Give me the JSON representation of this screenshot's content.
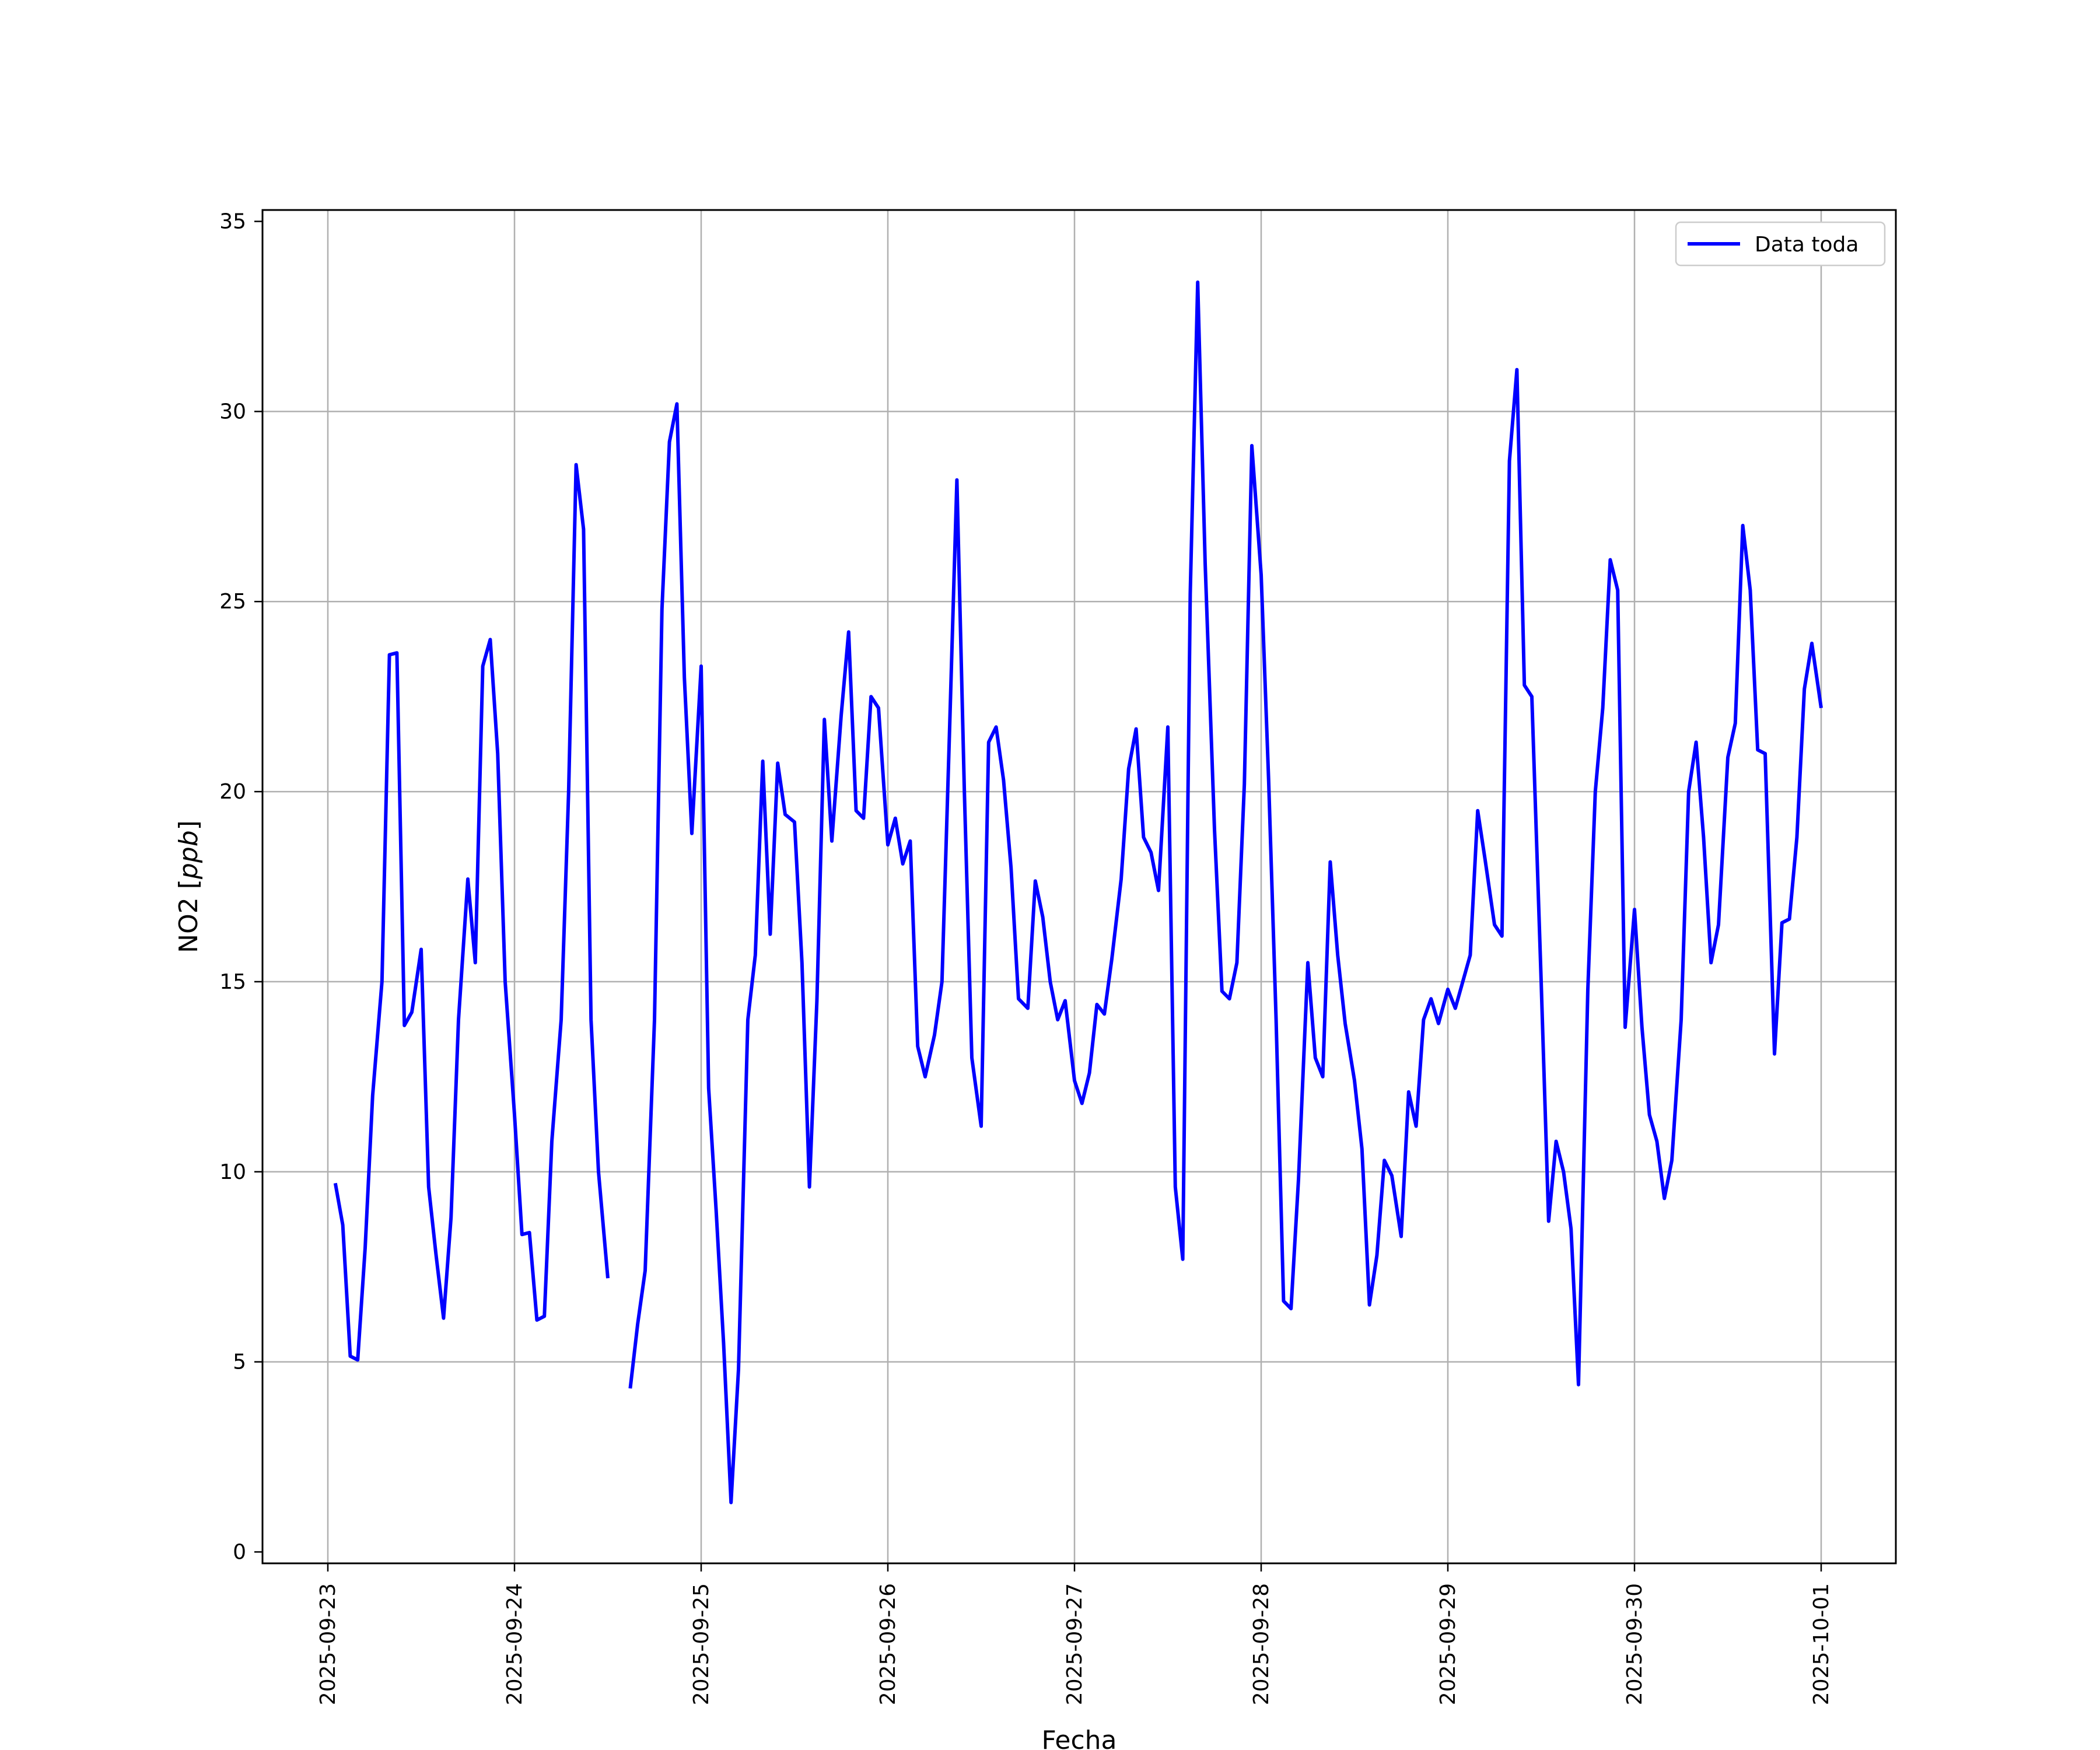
{
  "chart_data": {
    "type": "line",
    "title": "",
    "xlabel": "Fecha",
    "ylabel_main": "NO2",
    "ylabel_unit": "ppb",
    "grid": true,
    "legend_position": "top-right",
    "ylim": [
      0,
      35
    ],
    "xlim_days": [
      -0.35,
      8.4
    ],
    "x_start_date": "2025-09-23",
    "y_ticks": [
      {
        "value": 0,
        "label": "0"
      },
      {
        "value": 5,
        "label": "5"
      },
      {
        "value": 10,
        "label": "10"
      },
      {
        "value": 15,
        "label": "15"
      },
      {
        "value": 20,
        "label": "20"
      },
      {
        "value": 25,
        "label": "25"
      },
      {
        "value": 30,
        "label": "30"
      },
      {
        "value": 35,
        "label": "35"
      }
    ],
    "x_ticks": [
      {
        "day": 0,
        "label": "2025-09-23"
      },
      {
        "day": 1,
        "label": "2025-09-24"
      },
      {
        "day": 2,
        "label": "2025-09-25"
      },
      {
        "day": 3,
        "label": "2025-09-26"
      },
      {
        "day": 4,
        "label": "2025-09-27"
      },
      {
        "day": 5,
        "label": "2025-09-28"
      },
      {
        "day": 6,
        "label": "2025-09-29"
      },
      {
        "day": 7,
        "label": "2025-09-30"
      },
      {
        "day": 8,
        "label": "2025-10-01"
      }
    ],
    "series": [
      {
        "name": "Data toda",
        "color": "#0000ff",
        "segments": [
          [
            [
              0.04,
              9.7
            ],
            [
              0.08,
              8.6
            ],
            [
              0.12,
              5.15
            ],
            [
              0.16,
              5.05
            ],
            [
              0.2,
              8.0
            ],
            [
              0.24,
              12.0
            ],
            [
              0.29,
              15.0
            ],
            [
              0.33,
              23.6
            ],
            [
              0.37,
              23.65
            ],
            [
              0.41,
              13.85
            ],
            [
              0.45,
              14.2
            ],
            [
              0.5,
              15.85
            ],
            [
              0.54,
              9.6
            ],
            [
              0.58,
              7.8
            ],
            [
              0.62,
              6.15
            ],
            [
              0.66,
              8.8
            ],
            [
              0.7,
              14.0
            ],
            [
              0.75,
              17.7
            ],
            [
              0.79,
              15.5
            ],
            [
              0.83,
              23.3
            ],
            [
              0.87,
              24.0
            ],
            [
              0.91,
              21.0
            ],
            [
              0.95,
              15.0
            ],
            [
              1.0,
              11.5
            ],
            [
              1.04,
              8.35
            ],
            [
              1.08,
              8.4
            ],
            [
              1.12,
              6.1
            ],
            [
              1.16,
              6.2
            ],
            [
              1.2,
              10.8
            ],
            [
              1.25,
              14.0
            ],
            [
              1.29,
              20.0
            ],
            [
              1.33,
              28.6
            ],
            [
              1.37,
              26.9
            ],
            [
              1.41,
              14.0
            ],
            [
              1.45,
              10.0
            ],
            [
              1.5,
              7.2
            ]
          ],
          [
            [
              1.62,
              4.3
            ],
            [
              1.66,
              6.0
            ],
            [
              1.7,
              7.4
            ],
            [
              1.75,
              14.0
            ],
            [
              1.79,
              24.8
            ],
            [
              1.83,
              29.2
            ],
            [
              1.87,
              30.2
            ],
            [
              1.91,
              23.0
            ],
            [
              1.95,
              18.9
            ],
            [
              2.0,
              23.3
            ],
            [
              2.04,
              12.2
            ],
            [
              2.08,
              9.0
            ],
            [
              2.12,
              5.5
            ],
            [
              2.16,
              1.3
            ],
            [
              2.2,
              4.8
            ],
            [
              2.25,
              14.0
            ],
            [
              2.29,
              15.7
            ],
            [
              2.33,
              20.8
            ],
            [
              2.37,
              16.25
            ],
            [
              2.41,
              20.75
            ],
            [
              2.45,
              19.4
            ],
            [
              2.5,
              19.2
            ],
            [
              2.54,
              15.5
            ],
            [
              2.58,
              9.6
            ],
            [
              2.62,
              14.5
            ],
            [
              2.66,
              21.9
            ],
            [
              2.7,
              18.7
            ],
            [
              2.75,
              22.0
            ],
            [
              2.79,
              24.2
            ],
            [
              2.83,
              19.5
            ],
            [
              2.87,
              19.3
            ],
            [
              2.91,
              22.5
            ],
            [
              2.95,
              22.2
            ],
            [
              3.0,
              18.6
            ],
            [
              3.04,
              19.3
            ],
            [
              3.08,
              18.1
            ],
            [
              3.12,
              18.7
            ],
            [
              3.16,
              13.3
            ],
            [
              3.2,
              12.5
            ],
            [
              3.25,
              13.6
            ],
            [
              3.29,
              15.0
            ],
            [
              3.33,
              21.5
            ],
            [
              3.37,
              28.2
            ],
            [
              3.41,
              20.0
            ],
            [
              3.45,
              13.0
            ],
            [
              3.5,
              11.2
            ],
            [
              3.54,
              21.3
            ],
            [
              3.58,
              21.7
            ],
            [
              3.62,
              20.3
            ],
            [
              3.66,
              18.0
            ],
            [
              3.7,
              14.55
            ],
            [
              3.75,
              14.3
            ],
            [
              3.79,
              17.65
            ],
            [
              3.83,
              16.7
            ],
            [
              3.87,
              15.0
            ],
            [
              3.91,
              14.0
            ],
            [
              3.95,
              14.5
            ],
            [
              4.0,
              12.4
            ],
            [
              4.04,
              11.8
            ],
            [
              4.08,
              12.6
            ],
            [
              4.12,
              14.4
            ],
            [
              4.16,
              14.15
            ],
            [
              4.2,
              15.6
            ],
            [
              4.25,
              17.7
            ],
            [
              4.29,
              20.6
            ],
            [
              4.33,
              21.65
            ],
            [
              4.37,
              18.8
            ],
            [
              4.41,
              18.4
            ],
            [
              4.45,
              17.4
            ],
            [
              4.5,
              21.7
            ],
            [
              4.54,
              9.6
            ],
            [
              4.58,
              7.7
            ],
            [
              4.62,
              25.2
            ],
            [
              4.66,
              33.4
            ],
            [
              4.7,
              26.0
            ],
            [
              4.75,
              19.0
            ],
            [
              4.79,
              14.75
            ],
            [
              4.83,
              14.55
            ],
            [
              4.87,
              15.5
            ],
            [
              4.91,
              20.2
            ],
            [
              4.95,
              29.1
            ],
            [
              5.0,
              25.7
            ],
            [
              5.04,
              20.3
            ],
            [
              5.08,
              14.0
            ],
            [
              5.12,
              6.6
            ],
            [
              5.16,
              6.4
            ],
            [
              5.2,
              9.8
            ],
            [
              5.25,
              15.5
            ],
            [
              5.29,
              13.0
            ],
            [
              5.33,
              12.5
            ],
            [
              5.37,
              18.15
            ],
            [
              5.41,
              15.7
            ],
            [
              5.45,
              13.9
            ],
            [
              5.5,
              12.4
            ],
            [
              5.54,
              10.6
            ],
            [
              5.58,
              6.5
            ],
            [
              5.62,
              7.8
            ],
            [
              5.66,
              10.3
            ],
            [
              5.7,
              9.9
            ],
            [
              5.75,
              8.3
            ],
            [
              5.79,
              12.1
            ],
            [
              5.83,
              11.2
            ],
            [
              5.87,
              14.0
            ],
            [
              5.91,
              14.55
            ],
            [
              5.95,
              13.9
            ],
            [
              6.0,
              14.8
            ],
            [
              6.04,
              14.3
            ],
            [
              6.08,
              15.0
            ],
            [
              6.12,
              15.7
            ],
            [
              6.16,
              19.5
            ],
            [
              6.2,
              18.2
            ],
            [
              6.25,
              16.5
            ],
            [
              6.29,
              16.2
            ],
            [
              6.33,
              28.7
            ],
            [
              6.37,
              31.1
            ],
            [
              6.41,
              22.8
            ],
            [
              6.45,
              22.5
            ],
            [
              6.5,
              15.0
            ],
            [
              6.54,
              8.7
            ],
            [
              6.58,
              10.8
            ],
            [
              6.62,
              10.0
            ],
            [
              6.66,
              8.5
            ],
            [
              6.7,
              4.4
            ],
            [
              6.75,
              14.8
            ],
            [
              6.79,
              20.0
            ],
            [
              6.83,
              22.2
            ],
            [
              6.87,
              26.1
            ],
            [
              6.91,
              25.3
            ],
            [
              6.95,
              13.8
            ],
            [
              7.0,
              16.9
            ],
            [
              7.04,
              13.8
            ],
            [
              7.08,
              11.5
            ],
            [
              7.12,
              10.8
            ],
            [
              7.16,
              9.3
            ],
            [
              7.2,
              10.3
            ],
            [
              7.25,
              14.0
            ],
            [
              7.29,
              20.0
            ],
            [
              7.33,
              21.3
            ],
            [
              7.37,
              18.8
            ],
            [
              7.41,
              15.5
            ],
            [
              7.45,
              16.5
            ],
            [
              7.5,
              20.9
            ],
            [
              7.54,
              21.8
            ],
            [
              7.58,
              27.0
            ],
            [
              7.62,
              25.3
            ],
            [
              7.66,
              21.1
            ],
            [
              7.7,
              21.0
            ],
            [
              7.75,
              13.1
            ],
            [
              7.79,
              16.55
            ],
            [
              7.83,
              16.65
            ],
            [
              7.87,
              18.8
            ],
            [
              7.91,
              22.7
            ],
            [
              7.95,
              23.9
            ],
            [
              8.0,
              22.2
            ]
          ]
        ]
      }
    ]
  }
}
